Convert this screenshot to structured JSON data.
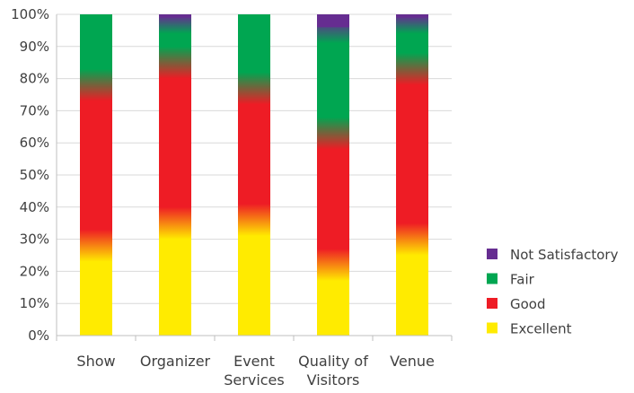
{
  "chart_data": {
    "type": "bar",
    "stacked": true,
    "percent": true,
    "categories": [
      [
        "Show"
      ],
      [
        "Organizer"
      ],
      [
        "Event",
        "Services"
      ],
      [
        "Quality of",
        "Visitors"
      ],
      [
        "Venue"
      ]
    ],
    "series": [
      {
        "name": "Excellent",
        "color": "#FFEB00",
        "values": [
          28,
          35,
          36,
          22,
          30
        ]
      },
      {
        "name": "Good",
        "color": "#EE1C25",
        "values": [
          50,
          50,
          41,
          41,
          53
        ]
      },
      {
        "name": "Fair",
        "color": "#00A651",
        "values": [
          22,
          14,
          23,
          33,
          16
        ]
      },
      {
        "name": "Not Satisfactory",
        "color": "#662D91",
        "values": [
          0,
          1,
          0,
          4,
          1
        ]
      }
    ],
    "yticks": [
      "0%",
      "10%",
      "20%",
      "30%",
      "40%",
      "50%",
      "60%",
      "70%",
      "80%",
      "90%",
      "100%"
    ],
    "ylim": [
      0,
      100
    ],
    "grid": true,
    "legend_position": "right",
    "legend_order": [
      "Not Satisfactory",
      "Fair",
      "Good",
      "Excellent"
    ]
  }
}
